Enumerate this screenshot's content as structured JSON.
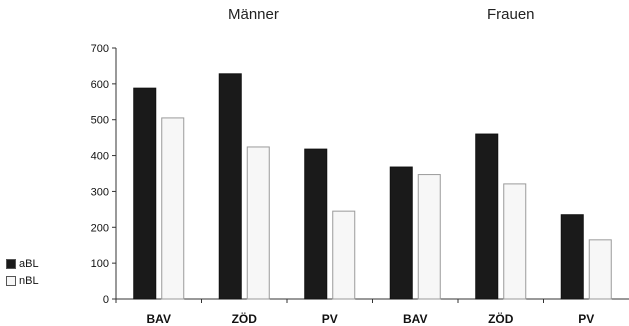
{
  "chart_data": {
    "type": "bar",
    "groups": [
      {
        "title": "Männer",
        "categories": [
          "BAV",
          "ZÖD",
          "PV"
        ]
      },
      {
        "title": "Frauen",
        "categories": [
          "BAV",
          "ZÖD",
          "PV"
        ]
      }
    ],
    "categories": [
      "BAV",
      "ZÖD",
      "PV",
      "BAV",
      "ZÖD",
      "PV"
    ],
    "series": [
      {
        "name": "aBL",
        "color": "#1a1a1a",
        "values": [
          588,
          628,
          418,
          368,
          460,
          235
        ]
      },
      {
        "name": "nBL",
        "color": "#f7f7f7",
        "values": [
          505,
          424,
          245,
          347,
          321,
          165
        ]
      }
    ],
    "ylim": [
      0,
      700
    ],
    "yticks": [
      0,
      100,
      200,
      300,
      400,
      500,
      600,
      700
    ],
    "grid": false,
    "legend_position": "left-bottom"
  }
}
